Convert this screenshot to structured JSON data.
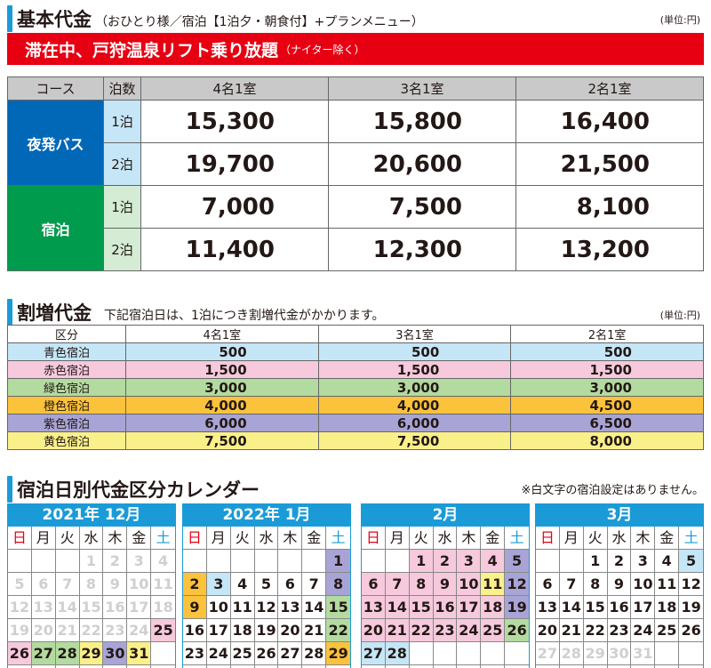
{
  "section1": {
    "title": "基本代金",
    "subtitle": "（おひとり様／宿泊【1泊夕・朝食付】+プランメニュー）",
    "unit": "(単位:円)"
  },
  "banner": {
    "text": "滞在中、戸狩温泉リフト乗り放題",
    "note": "（ナイター除く）"
  },
  "basic_table": {
    "headers": [
      "コース",
      "泊数",
      "4名1室",
      "3名1室",
      "2名1室"
    ],
    "groups": [
      {
        "course": "夜発バス",
        "color": "#0068b7",
        "rows": [
          {
            "nights": "1泊",
            "prices": [
              "15,300",
              "15,800",
              "16,400"
            ]
          },
          {
            "nights": "2泊",
            "prices": [
              "19,700",
              "20,600",
              "21,500"
            ]
          }
        ]
      },
      {
        "course": "宿泊",
        "color": "#009b4c",
        "rows": [
          {
            "nights": "1泊",
            "prices": [
              "7,000",
              "7,500",
              "8,100"
            ]
          },
          {
            "nights": "2泊",
            "prices": [
              "11,400",
              "12,300",
              "13,200"
            ]
          }
        ]
      }
    ]
  },
  "section2": {
    "title": "割増代金",
    "subtitle": "下記宿泊日は、1泊につき割増代金がかかります。",
    "unit": "(単位:円)"
  },
  "surcharge_table": {
    "headers": [
      "区分",
      "4名1室",
      "3名1室",
      "2名1室"
    ],
    "rows": [
      {
        "label": "青色宿泊",
        "color": "#c5e6f7",
        "values": [
          "500",
          "500",
          "500"
        ]
      },
      {
        "label": "赤色宿泊",
        "color": "#f6c9dd",
        "values": [
          "1,500",
          "1,500",
          "1,500"
        ]
      },
      {
        "label": "緑色宿泊",
        "color": "#b3dba0",
        "values": [
          "3,000",
          "3,000",
          "3,000"
        ]
      },
      {
        "label": "橙色宿泊",
        "color": "#fbc23b",
        "values": [
          "4,000",
          "4,000",
          "4,500"
        ]
      },
      {
        "label": "紫色宿泊",
        "color": "#a8a4d6",
        "values": [
          "6,000",
          "6,000",
          "6,500"
        ]
      },
      {
        "label": "黄色宿泊",
        "color": "#faf08a",
        "values": [
          "7,500",
          "7,500",
          "8,000"
        ]
      }
    ]
  },
  "section3": {
    "title": "宿泊日別代金区分カレンダー",
    "notice": "※白文字の宿泊設定はありません。"
  },
  "colors": {
    "b": "#c5e6f7",
    "r": "#f6c9dd",
    "g": "#b3dba0",
    "o": "#fbc23b",
    "p": "#a8a4d6",
    "y": "#faf08a"
  },
  "calendars": [
    {
      "title": "2021年 12月",
      "weekdays": [
        "日",
        "月",
        "火",
        "水",
        "木",
        "金",
        "土"
      ],
      "start": 3,
      "days": 31,
      "ghost_before": 0,
      "ghost_after": 0,
      "colored": {
        "25": "r",
        "26": "r",
        "27": "g",
        "28": "g",
        "29": "y",
        "30": "p",
        "31": "y"
      },
      "white": [
        1,
        2,
        3,
        4,
        5,
        6,
        7,
        8,
        9,
        10,
        11,
        12,
        13,
        14,
        15,
        16,
        17,
        18,
        19,
        20,
        21,
        22,
        23,
        24
      ]
    },
    {
      "title": "2022年 1月",
      "weekdays": [
        "日",
        "月",
        "火",
        "水",
        "木",
        "金",
        "土"
      ],
      "start": 6,
      "days": 31,
      "colored": {
        "1": "p",
        "2": "o",
        "3": "b",
        "8": "p",
        "9": "o",
        "15": "g",
        "22": "g",
        "29": "o"
      },
      "white": []
    },
    {
      "title": "2月",
      "weekdays": [
        "日",
        "月",
        "火",
        "水",
        "木",
        "金",
        "土"
      ],
      "start": 2,
      "days": 28,
      "colored": {
        "1": "r",
        "2": "r",
        "3": "r",
        "4": "r",
        "5": "p",
        "6": "r",
        "7": "r",
        "8": "r",
        "9": "r",
        "10": "r",
        "11": "y",
        "12": "p",
        "13": "r",
        "14": "r",
        "15": "r",
        "16": "r",
        "17": "r",
        "18": "r",
        "19": "p",
        "20": "r",
        "21": "r",
        "22": "r",
        "23": "r",
        "24": "r",
        "25": "r",
        "26": "g",
        "27": "b",
        "28": "b"
      },
      "white": []
    },
    {
      "title": "3月",
      "weekdays": [
        "日",
        "月",
        "火",
        "水",
        "木",
        "金",
        "土"
      ],
      "start": 2,
      "days": 31,
      "colored": {
        "5": "b"
      },
      "white": [
        27,
        28,
        29,
        30,
        31
      ]
    }
  ]
}
